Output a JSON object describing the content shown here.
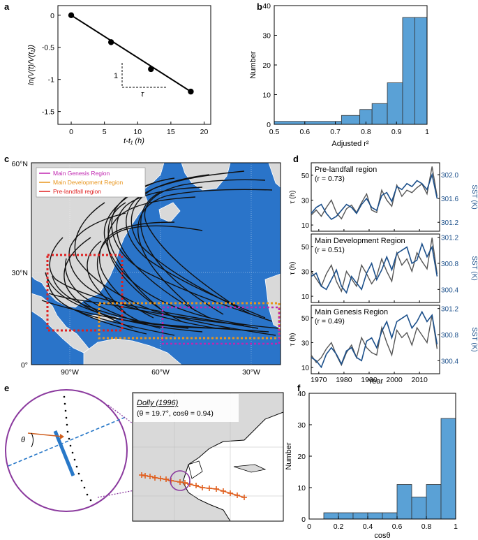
{
  "panels": {
    "a": {
      "letter": "a",
      "ylabel": "ln(V(t)/V(t₁))",
      "xlabel": "t-t₁ (h)",
      "annot_one": "1",
      "annot_tau": "τ"
    },
    "b": {
      "letter": "b",
      "ylabel": "Number",
      "xlabel": "Adjusted r²"
    },
    "c": {
      "letter": "c",
      "lat_labels": [
        "60°N",
        "30°N",
        "0°"
      ],
      "lon_labels": [
        "90°W",
        "60°W",
        "30°W"
      ],
      "legend": [
        "Main Genesis Region",
        "Main Development Region",
        "Pre-landfall region"
      ]
    },
    "d": {
      "letter": "d",
      "xlabel": "Year",
      "ylabel_left": "τ (h)",
      "ylabel_right": "SST (K)",
      "sub": [
        {
          "title": "Pre-landfall region",
          "r": "(r = 0.73)",
          "left_ticks": [
            "50",
            "30",
            "10"
          ],
          "right_ticks": [
            "302.0",
            "301.6",
            "301.2"
          ]
        },
        {
          "title": "Main Development Region",
          "r": "(r = 0.51)",
          "left_ticks": [
            "50",
            "30",
            "10"
          ],
          "right_ticks": [
            "301.2",
            "300.8",
            "300.4"
          ]
        },
        {
          "title": "Main Genesis Region",
          "r": "(r = 0.49)",
          "left_ticks": [
            "50",
            "30",
            "10"
          ],
          "right_ticks": [
            "301.2",
            "300.8",
            "300.4"
          ]
        }
      ]
    },
    "e": {
      "letter": "e",
      "storm": "Dolly (1996)",
      "params": "(θ = 19.7°, cosθ = 0.94)",
      "theta": "θ"
    },
    "f": {
      "letter": "f",
      "ylabel": "Number",
      "xlabel": "cosθ"
    }
  },
  "colors": {
    "bar_fill": "#5aa1d6",
    "ocean": "#2a74c9",
    "land": "#d9d9d9",
    "genesis": "#c026b0",
    "development": "#e8951c",
    "prelandfall": "#e02020",
    "tau_line": "#555555",
    "sst_line": "#1b4f8a",
    "track_dolly": "#e06020"
  },
  "chart_data": [
    {
      "panel": "a",
      "type": "scatter",
      "x": [
        0,
        6,
        12,
        18
      ],
      "y": [
        0,
        -0.42,
        -0.84,
        -1.19
      ],
      "fit": {
        "slope": -0.0661,
        "intercept": 0
      },
      "xlim": [
        -2,
        21
      ],
      "ylim": [
        -1.7,
        0.15
      ],
      "xticks": [
        0,
        5,
        10,
        15,
        20
      ],
      "yticks": [
        0,
        -0.5,
        -1,
        -1.5
      ],
      "xlabel": "t-t₁ (h)",
      "ylabel": "ln(V(t)/V(t₁))"
    },
    {
      "panel": "b",
      "type": "bar",
      "bin_edges": [
        0.5,
        0.72,
        0.78,
        0.82,
        0.87,
        0.92,
        0.96,
        1.0
      ],
      "values": [
        1,
        3,
        5,
        7,
        14,
        36,
        36
      ],
      "xlim": [
        0.5,
        1
      ],
      "ylim": [
        0,
        40
      ],
      "xticks": [
        0.5,
        0.6,
        0.7,
        0.8,
        0.9,
        1
      ],
      "yticks": [
        0,
        10,
        20,
        30,
        40
      ],
      "xlabel": "Adjusted r²",
      "ylabel": "Number"
    },
    {
      "panel": "d",
      "type": "line",
      "x": [
        1967,
        1969,
        1971,
        1973,
        1975,
        1977,
        1979,
        1981,
        1983,
        1985,
        1987,
        1989,
        1991,
        1993,
        1995,
        1997,
        1999,
        2001,
        2003,
        2005,
        2007,
        2009,
        2011,
        2013,
        2015,
        2017
      ],
      "xlim": [
        1967,
        2018
      ],
      "xticks": [
        1970,
        1980,
        1990,
        2000,
        2010
      ],
      "xlabel": "Year",
      "subplots": [
        {
          "title": "Pre-landfall region",
          "r": 0.73,
          "ylim_tau": [
            5,
            60
          ],
          "ylim_sst": [
            301.05,
            302.2
          ],
          "series": [
            {
              "name": "τ",
              "values": [
                18,
                22,
                17,
                24,
                30,
                20,
                15,
                23,
                26,
                20,
                28,
                35,
                22,
                20,
                38,
                30,
                25,
                42,
                33,
                38,
                36,
                40,
                43,
                35,
                57,
                33
              ]
            },
            {
              "name": "SST",
              "values": [
                301.35,
                301.45,
                301.5,
                301.35,
                301.25,
                301.3,
                301.4,
                301.5,
                301.45,
                301.35,
                301.5,
                301.6,
                301.45,
                301.4,
                301.65,
                301.7,
                301.55,
                301.8,
                301.75,
                301.85,
                301.8,
                301.9,
                301.85,
                301.75,
                302.0,
                301.6
              ]
            }
          ]
        },
        {
          "title": "Main Development Region",
          "r": 0.51,
          "ylim_tau": [
            5,
            60
          ],
          "ylim_sst": [
            300.2,
            301.25
          ],
          "series": [
            {
              "name": "τ",
              "values": [
                30,
                24,
                18,
                28,
                35,
                22,
                14,
                30,
                24,
                18,
                35,
                28,
                20,
                26,
                40,
                30,
                22,
                45,
                35,
                40,
                30,
                45,
                38,
                32,
                57,
                28
              ]
            },
            {
              "name": "SST",
              "values": [
                300.6,
                300.65,
                300.45,
                300.4,
                300.55,
                300.7,
                300.45,
                300.35,
                300.6,
                300.5,
                300.4,
                300.65,
                300.8,
                300.55,
                300.7,
                300.9,
                300.7,
                300.95,
                301.0,
                301.05,
                300.8,
                300.85,
                301.1,
                300.9,
                301.05,
                300.6
              ]
            }
          ]
        },
        {
          "title": "Main Genesis Region",
          "r": 0.49,
          "ylim_tau": [
            5,
            60
          ],
          "ylim_sst": [
            300.2,
            301.25
          ],
          "series": [
            {
              "name": "τ",
              "values": [
                20,
                14,
                18,
                25,
                30,
                20,
                12,
                22,
                28,
                18,
                34,
                26,
                22,
                20,
                42,
                30,
                20,
                40,
                34,
                38,
                28,
                42,
                36,
                30,
                52,
                25
              ]
            },
            {
              "name": "SST",
              "values": [
                300.45,
                300.4,
                300.3,
                300.5,
                300.6,
                300.5,
                300.35,
                300.55,
                300.6,
                300.45,
                300.4,
                300.7,
                300.75,
                300.6,
                300.85,
                301.0,
                300.75,
                301.0,
                301.05,
                301.1,
                300.9,
                301.0,
                301.15,
                301.0,
                301.1,
                300.65
              ]
            }
          ]
        }
      ]
    },
    {
      "panel": "f",
      "type": "bar",
      "bin_edges": [
        0.1,
        0.2,
        0.3,
        0.4,
        0.5,
        0.6,
        0.7,
        0.8,
        0.9,
        1.0
      ],
      "values": [
        2,
        2,
        2,
        2,
        2,
        11,
        7,
        11,
        32
      ],
      "xlim": [
        0,
        1
      ],
      "ylim": [
        0,
        40
      ],
      "xticks": [
        0,
        0.2,
        0.4,
        0.6,
        0.8,
        1
      ],
      "yticks": [
        0,
        10,
        20,
        30,
        40
      ],
      "xlabel": "cosθ",
      "ylabel": "Number"
    }
  ]
}
